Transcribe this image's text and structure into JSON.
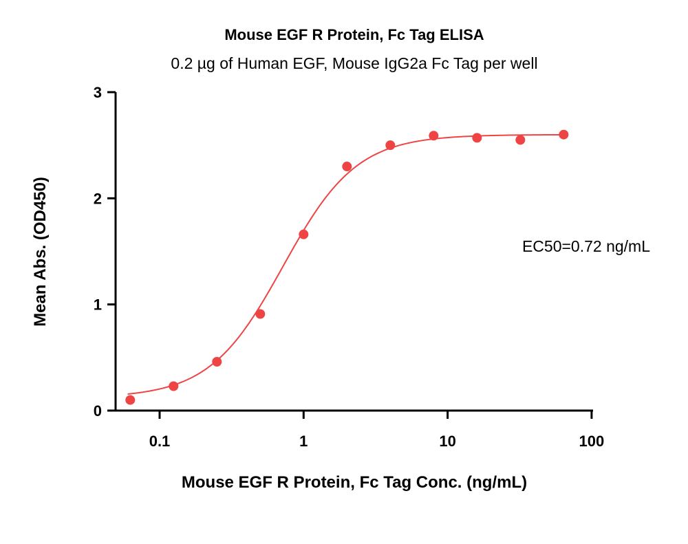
{
  "chart_data": {
    "type": "scatter",
    "title": "Mouse EGF R Protein, Fc Tag ELISA",
    "subtitle": "0.2 µg of Human EGF, Mouse IgG2a Fc Tag per well",
    "xlabel": "Mouse EGF R Protein, Fc Tag Conc. (ng/mL)",
    "ylabel": "Mean Abs. (OD450)",
    "xscale": "log",
    "xlim": [
      0.06,
      100
    ],
    "ylim": [
      0,
      3
    ],
    "x_ticks": [
      0.1,
      1,
      10,
      100
    ],
    "x_tick_labels": [
      "0.1",
      "1",
      "10",
      "100"
    ],
    "y_ticks": [
      0,
      1,
      2,
      3
    ],
    "y_tick_labels": [
      "0",
      "1",
      "2",
      "3"
    ],
    "grid": false,
    "color": "#ee4444",
    "series": [
      {
        "points": [
          {
            "x": 0.0625,
            "y": 0.1
          },
          {
            "x": 0.125,
            "y": 0.23
          },
          {
            "x": 0.25,
            "y": 0.46
          },
          {
            "x": 0.5,
            "y": 0.91
          },
          {
            "x": 1.0,
            "y": 1.66
          },
          {
            "x": 2.0,
            "y": 2.3
          },
          {
            "x": 4.0,
            "y": 2.5
          },
          {
            "x": 8.0,
            "y": 2.59
          },
          {
            "x": 16.0,
            "y": 2.57
          },
          {
            "x": 32.0,
            "y": 2.55
          },
          {
            "x": 64.0,
            "y": 2.6
          }
        ]
      }
    ],
    "fit": {
      "model": "4PL",
      "bottom": 0.12,
      "top": 2.6,
      "ec50": 0.72,
      "hill": 1.7
    },
    "annotation": "EC50=0.72 ng/mL"
  }
}
